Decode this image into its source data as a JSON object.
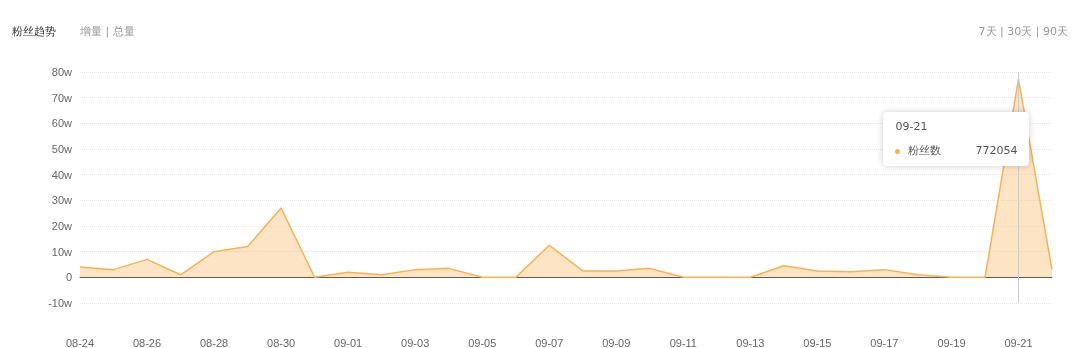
{
  "chart_data": {
    "type": "area",
    "title": "粉丝趋势",
    "categories": [
      "08-24",
      null,
      "08-26",
      null,
      "08-28",
      null,
      "08-30",
      null,
      "09-01",
      null,
      "09-03",
      null,
      "09-05",
      null,
      "09-07",
      null,
      "09-09",
      null,
      "09-11",
      null,
      "09-13",
      null,
      "09-15",
      null,
      "09-17",
      null,
      "09-19",
      null,
      "09-21",
      null
    ],
    "series": [
      {
        "name": "粉丝数",
        "color": "#f5b25a",
        "values": [
          4,
          3,
          7,
          1,
          10,
          12,
          27,
          0,
          2,
          1,
          3,
          3.5,
          0,
          0,
          12.5,
          2.5,
          2.5,
          3.5,
          0,
          0,
          0,
          4.5,
          2.5,
          2.2,
          3,
          1,
          0,
          0,
          77.2,
          3
        ]
      }
    ],
    "ylim": [
      -10,
      80
    ],
    "yticks": [
      {
        "value": -10,
        "label": "-10w"
      },
      0,
      {
        "value": 10,
        "label": "10w"
      },
      {
        "value": 20,
        "label": "20w"
      },
      {
        "value": 30,
        "label": "30w"
      },
      {
        "value": 40,
        "label": "40w"
      },
      {
        "value": 50,
        "label": "50w"
      },
      {
        "value": 60,
        "label": "60w"
      },
      {
        "value": 70,
        "label": "70w"
      },
      {
        "value": 80,
        "label": "80w"
      }
    ],
    "grid": "y",
    "legend": "top right",
    "marker": "none",
    "line_style": "solid",
    "ref_lines": [
      {
        "axis": "x",
        "value": "09-21",
        "color": "#cccccc"
      }
    ],
    "annotations": [
      "增量 | 总量",
      "7天 | 30天 | 90天",
      "09-21",
      "772054"
    ]
  }
}
